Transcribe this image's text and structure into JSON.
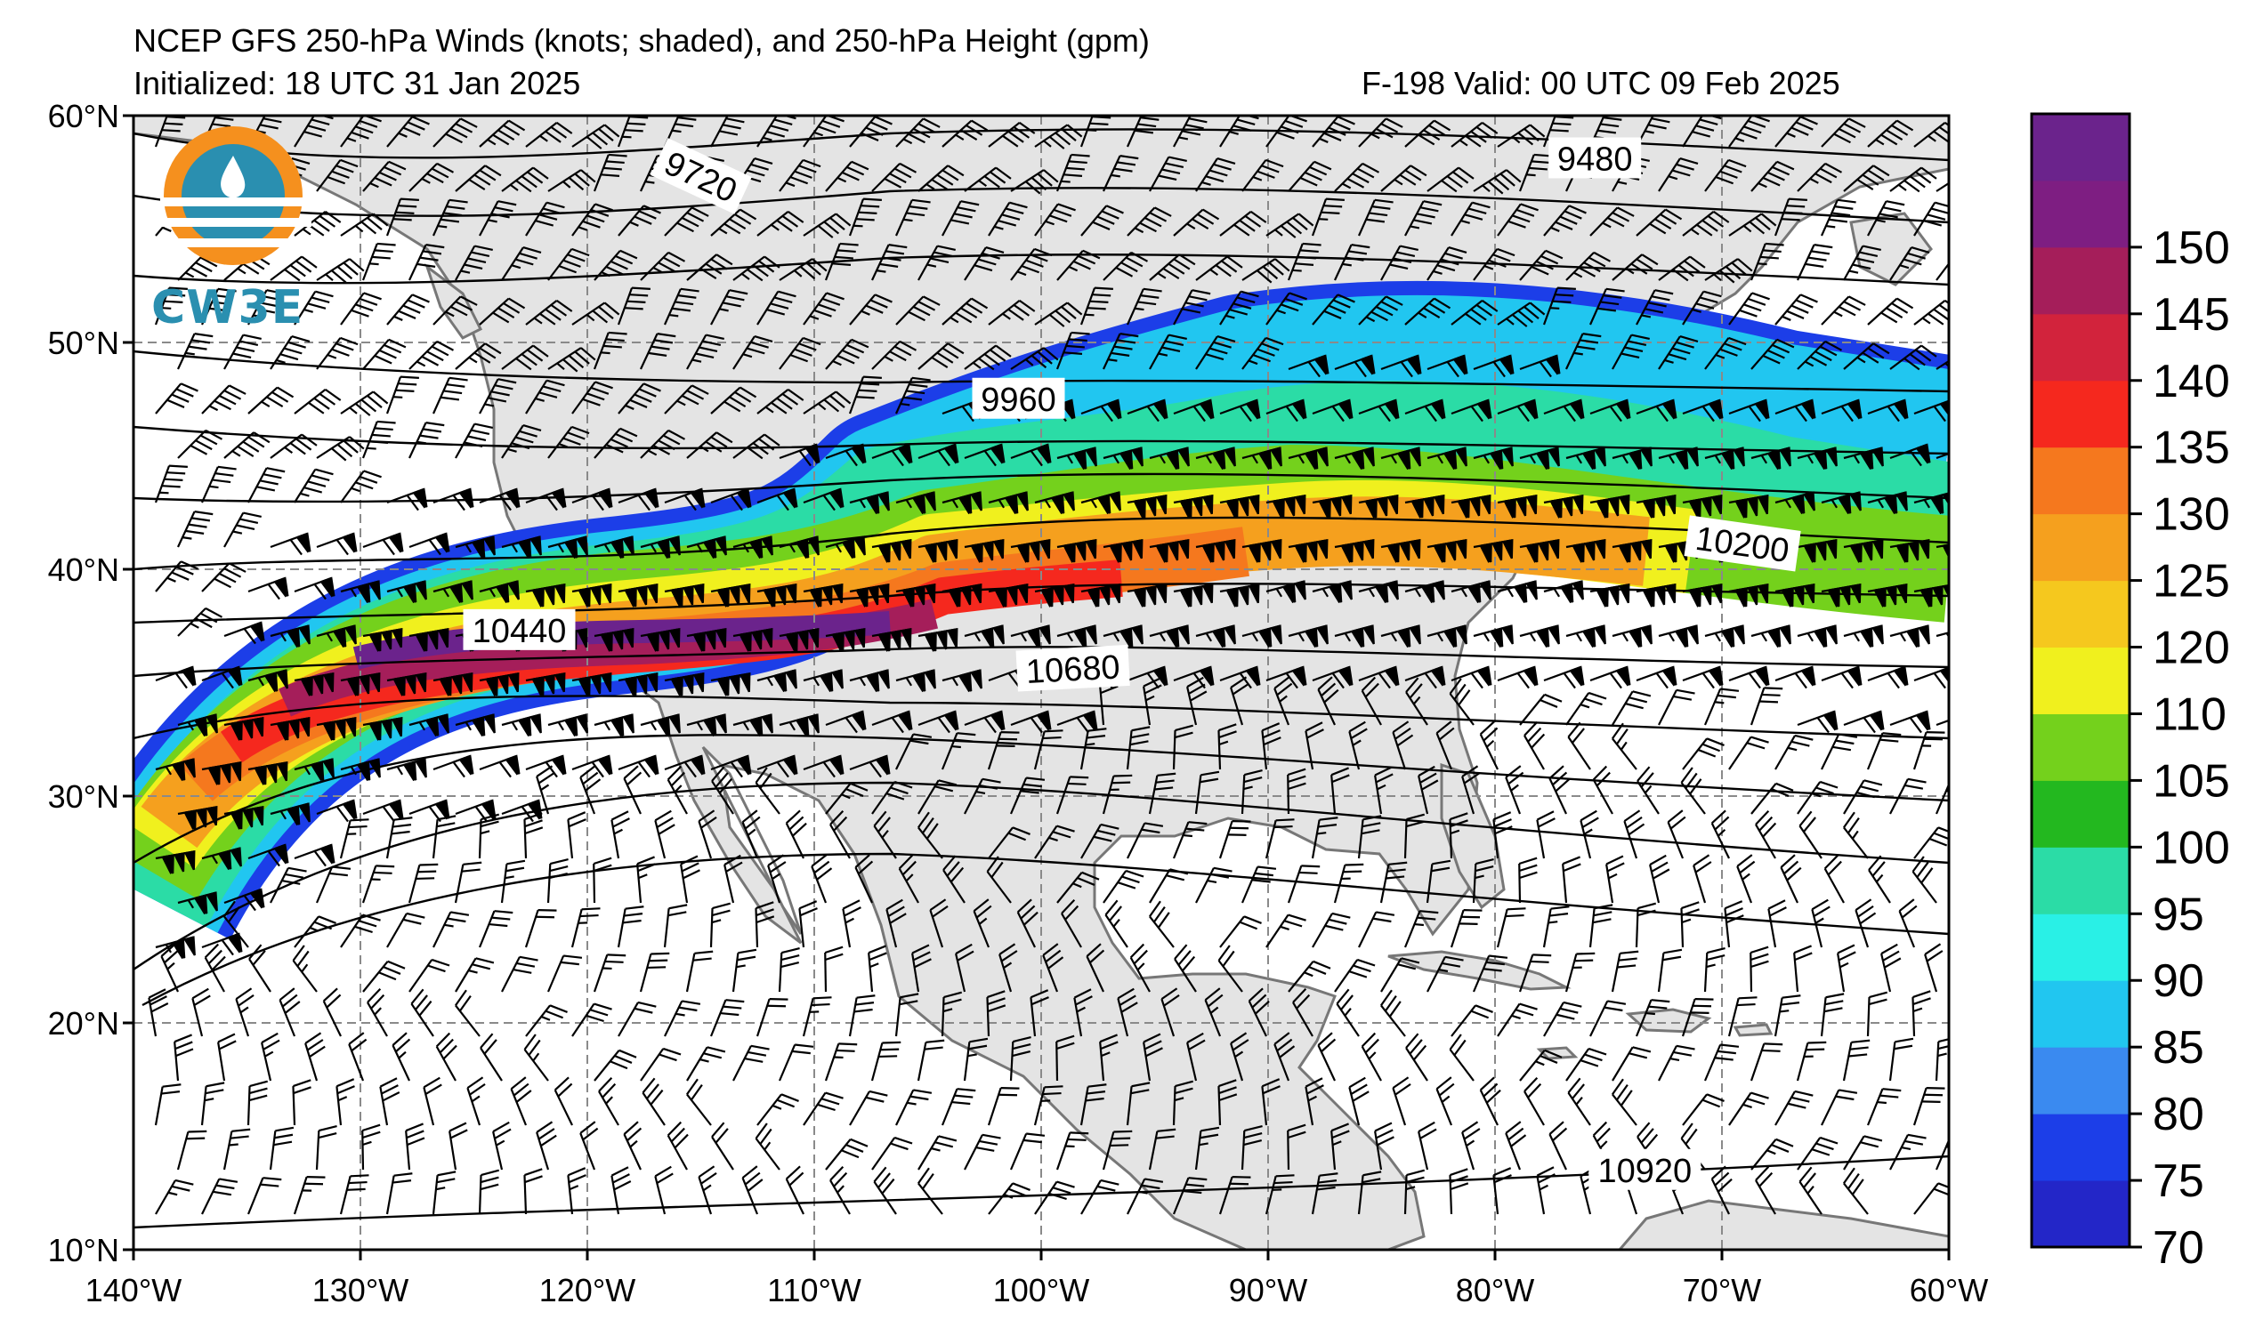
{
  "header": {
    "title": "NCEP GFS 250-hPa Winds (knots; shaded), and 250-hPa Height (gpm)",
    "initialized": "Initialized: 18 UTC 31 Jan 2025",
    "valid": "F-198  Valid: 00 UTC 09 Feb 2025"
  },
  "logo": {
    "text": "CW3E"
  },
  "map": {
    "lon_range": [
      -140,
      -60
    ],
    "lat_range": [
      10,
      60
    ],
    "lon_ticks": [
      {
        "value": -140,
        "label": "140°W"
      },
      {
        "value": -130,
        "label": "130°W"
      },
      {
        "value": -120,
        "label": "120°W"
      },
      {
        "value": -110,
        "label": "110°W"
      },
      {
        "value": -100,
        "label": "100°W"
      },
      {
        "value": -90,
        "label": "90°W"
      },
      {
        "value": -80,
        "label": "80°W"
      },
      {
        "value": -70,
        "label": "70°W"
      },
      {
        "value": -60,
        "label": "60°W"
      }
    ],
    "lat_ticks": [
      {
        "value": 60,
        "label": "60°N"
      },
      {
        "value": 50,
        "label": "50°N"
      },
      {
        "value": 40,
        "label": "40°N"
      },
      {
        "value": 30,
        "label": "30°N"
      },
      {
        "value": 20,
        "label": "20°N"
      },
      {
        "value": 10,
        "label": "10°N"
      }
    ],
    "gridlines": "dashed",
    "contour_labels": [
      {
        "text": "9720",
        "lon": -115,
        "lat": 57.3,
        "rot": 25
      },
      {
        "text": "9480",
        "lon": -75.6,
        "lat": 58.1,
        "rot": 0
      },
      {
        "text": "9960",
        "lon": -101,
        "lat": 47.5,
        "rot": 0
      },
      {
        "text": "10200",
        "lon": -69.1,
        "lat": 41.1,
        "rot": 8
      },
      {
        "text": "10440",
        "lon": -123,
        "lat": 37.3,
        "rot": 0
      },
      {
        "text": "10680",
        "lon": -98.6,
        "lat": 35.6,
        "rot": -3
      },
      {
        "text": "10920",
        "lon": -73.4,
        "lat": 13.5,
        "rot": 0
      }
    ]
  },
  "colorbar": {
    "ticks": [
      "70",
      "75",
      "80",
      "85",
      "90",
      "95",
      "100",
      "105",
      "110",
      "120",
      "125",
      "130",
      "135",
      "140",
      "145",
      "150"
    ],
    "colors": [
      "#2326c8",
      "#1c3ee8",
      "#3a8af0",
      "#21c6f0",
      "#29f0e6",
      "#2bdca6",
      "#23b81f",
      "#74d11c",
      "#f0f01e",
      "#f5c81e",
      "#f5a01e",
      "#f5781e",
      "#f5281e",
      "#d2233c",
      "#a51e5a",
      "#7e1e82",
      "#6b238c"
    ]
  }
}
